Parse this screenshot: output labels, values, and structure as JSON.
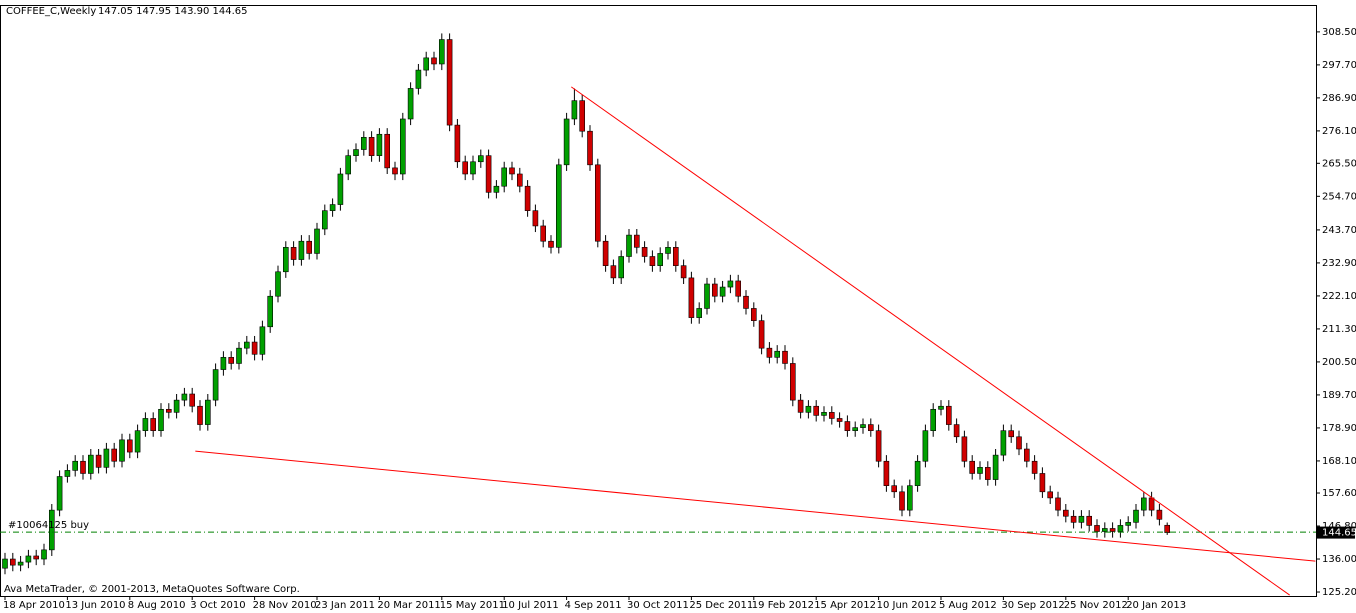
{
  "chart_data": {
    "type": "candlestick",
    "symbol": "COFFEE_C,Weekly",
    "ohlc_label": "147.05 147.95 143.90 144.65",
    "footer": "Ava MetaTrader, © 2001-2013, MetaQuotes Software Corp.",
    "up_color": "#00a000",
    "down_color": "#d00000",
    "wick_color": "#000000",
    "open": [
      133,
      136,
      134,
      135,
      137,
      136,
      139,
      152,
      163,
      165,
      168,
      164,
      170,
      166,
      172,
      168,
      175,
      171,
      178,
      182,
      178,
      185,
      184,
      188,
      190,
      186,
      180,
      188,
      198,
      202,
      200,
      205,
      207,
      203,
      212,
      222,
      230,
      238,
      234,
      240,
      236,
      244,
      250,
      252,
      262,
      268,
      270,
      274,
      268,
      275,
      264,
      262,
      280,
      290,
      296,
      300,
      298,
      306,
      278,
      266,
      262,
      266,
      268,
      256,
      258,
      264,
      262,
      258,
      250,
      245,
      240,
      238,
      265,
      280,
      286,
      276,
      265,
      240,
      232,
      228,
      235,
      242,
      238,
      235,
      232,
      236,
      238,
      232,
      228,
      215,
      218,
      226,
      222,
      225,
      227,
      222,
      218,
      214,
      205,
      202,
      204,
      200,
      188,
      184,
      186,
      183,
      184,
      182,
      181,
      178,
      179,
      180,
      178,
      168,
      160,
      158,
      152,
      160,
      168,
      178,
      185,
      186,
      180,
      176,
      168,
      164,
      166,
      162,
      170,
      178,
      176,
      172,
      168,
      164,
      158,
      156,
      152,
      150,
      148,
      150,
      147,
      145,
      146,
      145,
      147,
      148,
      152,
      156,
      152,
      147.05
    ],
    "high": [
      138,
      138,
      137,
      139,
      139,
      141,
      154,
      165,
      167,
      170,
      170,
      172,
      172,
      174,
      174,
      177,
      177,
      180,
      184,
      184,
      187,
      187,
      190,
      192,
      192,
      188,
      190,
      200,
      204,
      204,
      207,
      209,
      209,
      214,
      224,
      232,
      240,
      240,
      242,
      242,
      246,
      252,
      254,
      264,
      270,
      272,
      276,
      276,
      277,
      277,
      266,
      282,
      292,
      298,
      302,
      302,
      308,
      308,
      280,
      268,
      268,
      270,
      270,
      260,
      266,
      266,
      264,
      260,
      252,
      247,
      242,
      267,
      282,
      290,
      288,
      278,
      267,
      242,
      234,
      237,
      244,
      244,
      240,
      237,
      238,
      240,
      240,
      234,
      230,
      220,
      228,
      228,
      227,
      229,
      229,
      224,
      220,
      216,
      207,
      206,
      206,
      202,
      190,
      188,
      188,
      186,
      186,
      184,
      183,
      181,
      182,
      182,
      180,
      170,
      162,
      160,
      162,
      170,
      180,
      187,
      188,
      188,
      182,
      178,
      170,
      168,
      168,
      172,
      180,
      180,
      178,
      174,
      170,
      166,
      160,
      158,
      154,
      152,
      152,
      152,
      149,
      148,
      148,
      149,
      150,
      154,
      158,
      158,
      154,
      147.95
    ],
    "low": [
      131,
      132,
      132,
      133,
      134,
      134,
      137,
      150,
      161,
      163,
      162,
      162,
      164,
      164,
      166,
      166,
      169,
      169,
      176,
      176,
      176,
      182,
      182,
      186,
      184,
      178,
      178,
      186,
      196,
      198,
      198,
      203,
      201,
      201,
      210,
      220,
      228,
      232,
      232,
      234,
      234,
      242,
      248,
      250,
      260,
      266,
      268,
      266,
      266,
      262,
      260,
      260,
      278,
      288,
      294,
      296,
      296,
      276,
      264,
      260,
      260,
      264,
      254,
      254,
      256,
      260,
      256,
      248,
      243,
      238,
      236,
      236,
      263,
      278,
      274,
      263,
      238,
      230,
      226,
      226,
      233,
      236,
      233,
      230,
      230,
      234,
      230,
      226,
      213,
      213,
      216,
      220,
      220,
      223,
      220,
      216,
      212,
      203,
      200,
      200,
      198,
      186,
      182,
      182,
      181,
      181,
      180,
      179,
      176,
      176,
      177,
      176,
      166,
      158,
      156,
      150,
      150,
      158,
      166,
      176,
      183,
      178,
      174,
      166,
      162,
      162,
      160,
      160,
      168,
      174,
      170,
      166,
      162,
      156,
      154,
      150,
      148,
      146,
      146,
      145,
      143,
      143,
      143,
      143,
      145,
      146,
      150,
      150,
      147,
      143.9
    ],
    "close": [
      136,
      134,
      135,
      137,
      136,
      139,
      152,
      163,
      165,
      168,
      164,
      170,
      166,
      172,
      168,
      175,
      171,
      178,
      182,
      178,
      185,
      184,
      188,
      190,
      186,
      180,
      188,
      198,
      202,
      200,
      205,
      207,
      203,
      212,
      222,
      230,
      238,
      234,
      240,
      236,
      244,
      250,
      252,
      262,
      268,
      270,
      274,
      268,
      275,
      264,
      262,
      280,
      290,
      296,
      300,
      298,
      306,
      278,
      266,
      262,
      266,
      268,
      256,
      258,
      264,
      262,
      258,
      250,
      245,
      240,
      238,
      265,
      280,
      286,
      276,
      265,
      240,
      232,
      228,
      235,
      242,
      238,
      235,
      232,
      236,
      238,
      232,
      228,
      215,
      218,
      226,
      222,
      225,
      227,
      222,
      218,
      214,
      205,
      202,
      204,
      200,
      188,
      184,
      186,
      183,
      184,
      182,
      181,
      178,
      179,
      180,
      178,
      168,
      160,
      158,
      152,
      160,
      168,
      178,
      185,
      186,
      180,
      176,
      168,
      164,
      166,
      162,
      170,
      178,
      176,
      172,
      168,
      164,
      158,
      156,
      152,
      150,
      148,
      150,
      147,
      145,
      146,
      145,
      147,
      148,
      152,
      156,
      152,
      149,
      144.65
    ],
    "xlim": [
      -0.6,
      168
    ],
    "ylim": [
      123.9,
      317.3
    ],
    "yticks": [
      {
        "value": 125.2,
        "label": "125.20"
      },
      {
        "value": 136,
        "label": "136.00"
      },
      {
        "value": 146.8,
        "label": "146.80"
      },
      {
        "value": 157.6,
        "label": "157.60"
      },
      {
        "value": 168.1,
        "label": "168.10"
      },
      {
        "value": 178.9,
        "label": "178.90"
      },
      {
        "value": 189.7,
        "label": "189.70"
      },
      {
        "value": 200.5,
        "label": "200.50"
      },
      {
        "value": 211.3,
        "label": "211.30"
      },
      {
        "value": 222.1,
        "label": "222.10"
      },
      {
        "value": 232.9,
        "label": "232.90"
      },
      {
        "value": 243.7,
        "label": "243.70"
      },
      {
        "value": 254.7,
        "label": "254.70"
      },
      {
        "value": 265.5,
        "label": "265.50"
      },
      {
        "value": 276.1,
        "label": "276.10"
      },
      {
        "value": 286.9,
        "label": "286.90"
      },
      {
        "value": 297.7,
        "label": "297.70"
      },
      {
        "value": 308.5,
        "label": "308.50"
      }
    ],
    "xticks": [
      {
        "value": 0,
        "label": "18 Apr 2010"
      },
      {
        "value": 8,
        "label": "13 Jun 2010"
      },
      {
        "value": 16,
        "label": "8 Aug 2010"
      },
      {
        "value": 24,
        "label": "3 Oct 2010"
      },
      {
        "value": 32,
        "label": "28 Nov 2010"
      },
      {
        "value": 40,
        "label": "23 Jan 2011"
      },
      {
        "value": 48,
        "label": "20 Mar 2011"
      },
      {
        "value": 56,
        "label": "15 May 2011"
      },
      {
        "value": 64,
        "label": "10 Jul 2011"
      },
      {
        "value": 72,
        "label": "4 Sep 2011"
      },
      {
        "value": 80,
        "label": "30 Oct 2011"
      },
      {
        "value": 88,
        "label": "25 Dec 2011"
      },
      {
        "value": 96,
        "label": "19 Feb 2012"
      },
      {
        "value": 104,
        "label": "15 Apr 2012"
      },
      {
        "value": 112,
        "label": "10 Jun 2012"
      },
      {
        "value": 120,
        "label": "5 Aug 2012"
      },
      {
        "value": 128,
        "label": "30 Sep 2012"
      },
      {
        "value": 136,
        "label": "25 Nov 2012"
      },
      {
        "value": 144,
        "label": "20 Jan 2013"
      }
    ],
    "trendlines": [
      {
        "color": "#ff0000",
        "x": [
          72.6,
          164.7
        ],
        "y": [
          290.5,
          124.2
        ]
      },
      {
        "color": "#ff0000",
        "x": [
          24.4,
          168
        ],
        "y": [
          171.3,
          135.3
        ]
      }
    ],
    "order_line": {
      "label": "#10064125 buy",
      "value": 144.8,
      "color": "#008000"
    },
    "current_price": {
      "value": 144.65,
      "label": "144.65"
    }
  }
}
